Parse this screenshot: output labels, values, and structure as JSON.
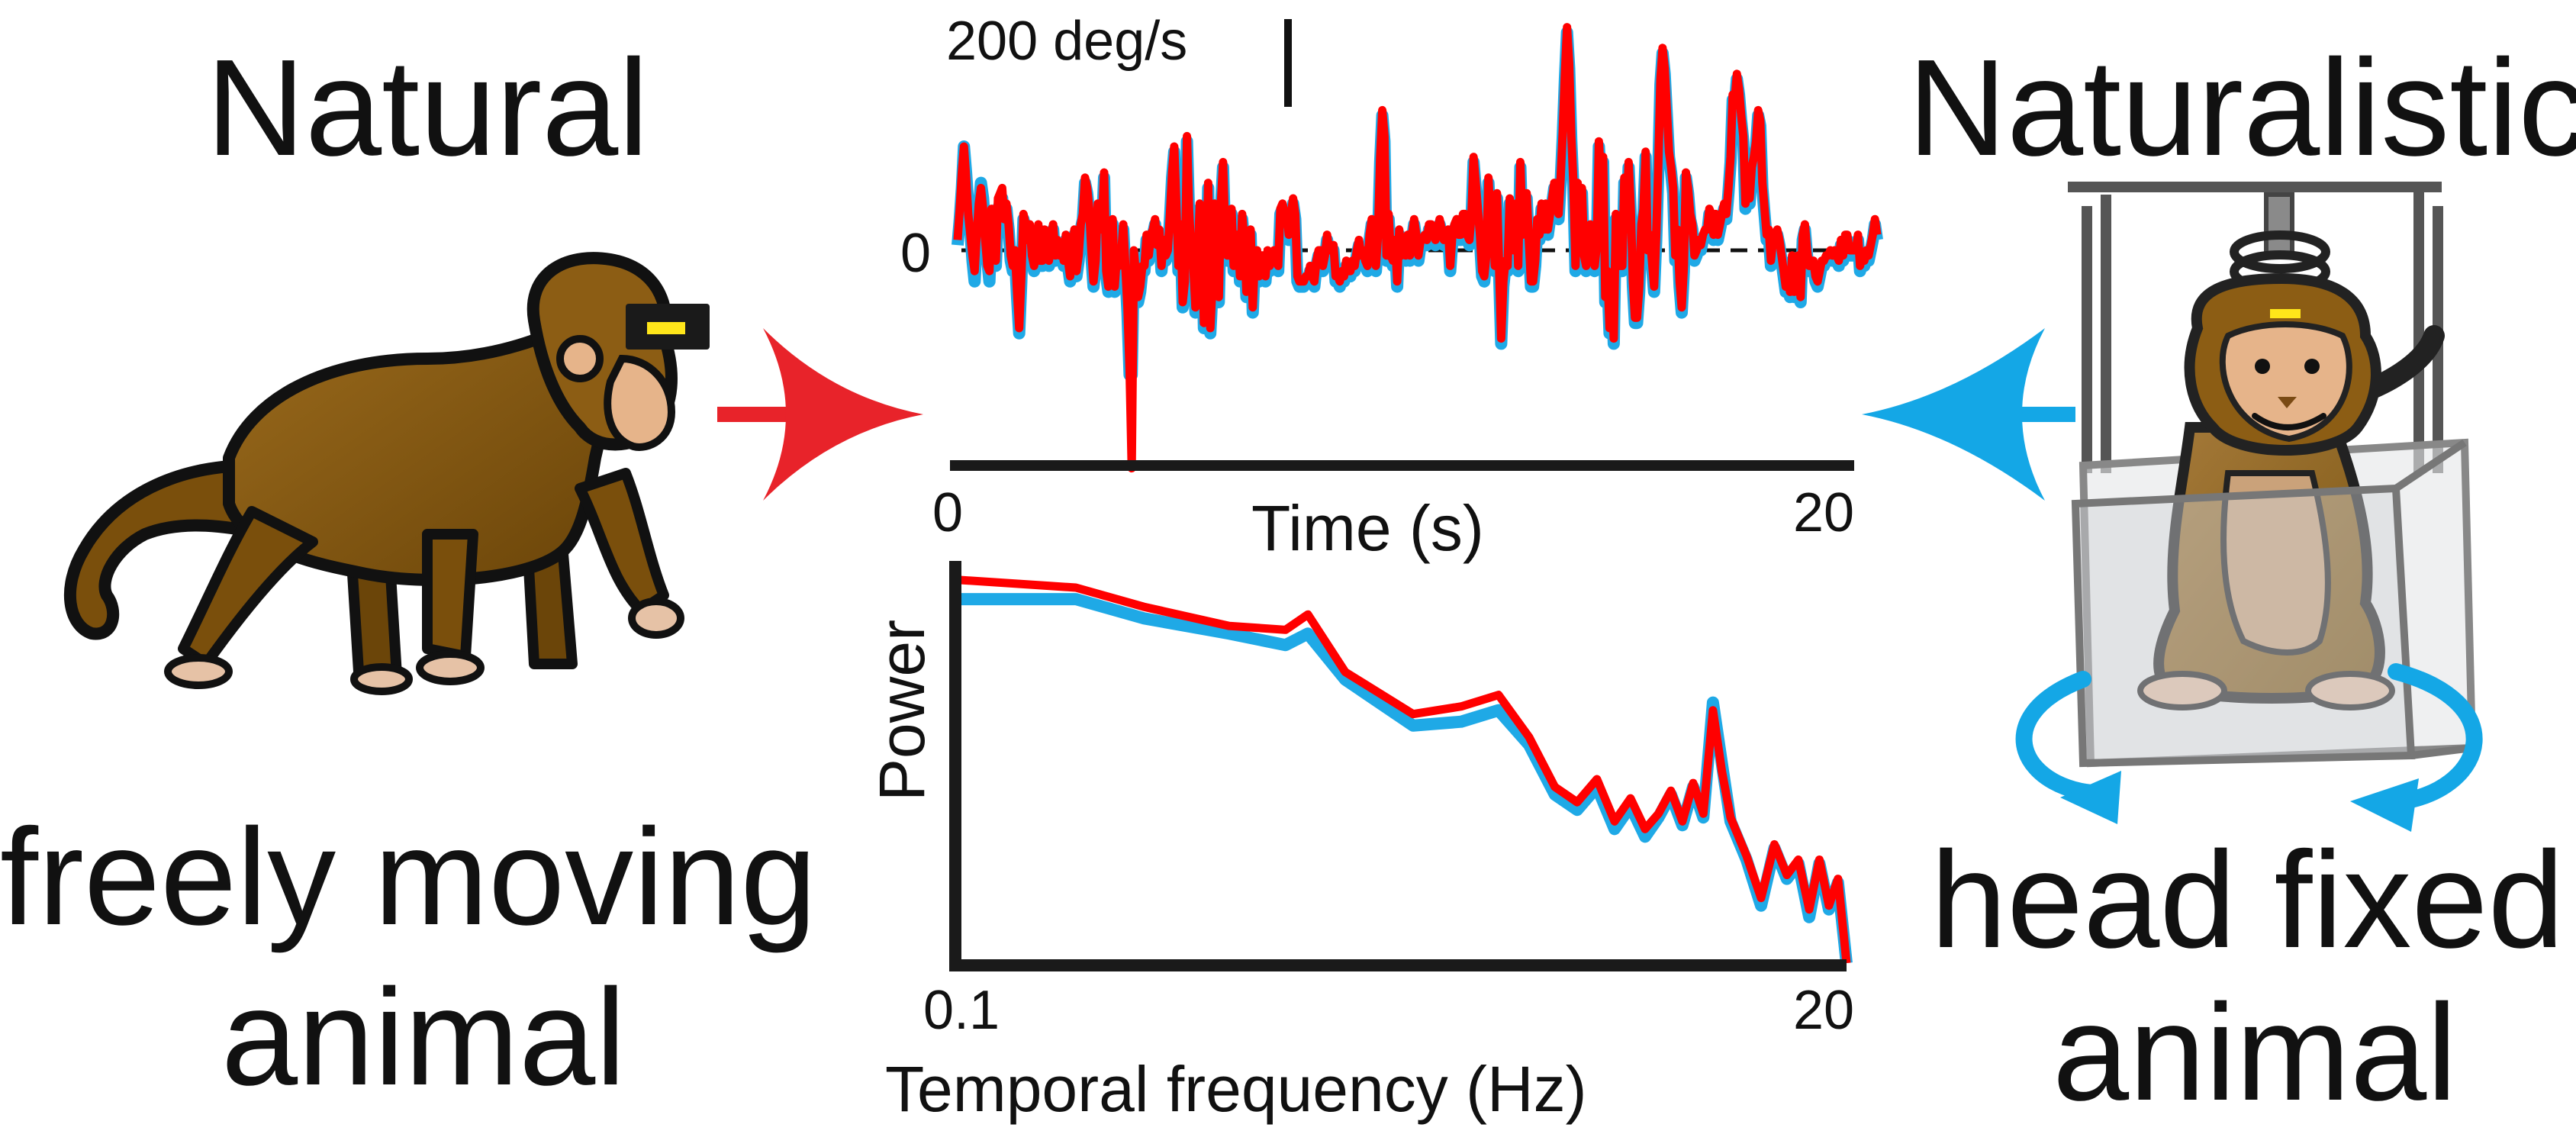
{
  "left_panel": {
    "heading": "Natural",
    "caption_line1": "freely moving",
    "caption_line2": "animal",
    "arrow_color": "#e8232a",
    "icon": "walking-monkey-with-head-sensor"
  },
  "right_panel": {
    "heading": "Naturalistic",
    "caption_line1": "head fixed",
    "caption_line2": "animal",
    "arrow_color": "#14a7e6",
    "icon": "caged-monkey-on-rotating-platform"
  },
  "colors": {
    "natural": "#ff0000",
    "naturalistic": "#1fa9e6",
    "axis": "#1a1a1a"
  },
  "chart_data": [
    {
      "type": "line",
      "scale_bar_label": "200 deg/s",
      "zero_label": "0",
      "xlabel": "Time (s)",
      "xlim": [
        0,
        20
      ],
      "x_tick_labels": [
        "0",
        "20"
      ],
      "ylim": [
        -430,
        430
      ],
      "series": [
        {
          "color": "#1fa9e6",
          "values": [
            10,
            60,
            120,
            200,
            150,
            90,
            40,
            -20,
            -60,
            20,
            80,
            130,
            100,
            40,
            -20,
            -60,
            60,
            20,
            -30,
            80,
            90,
            100,
            40,
            80,
            40,
            -20,
            -40,
            -10,
            -90,
            -160,
            -60,
            60,
            40,
            10,
            40,
            -20,
            -40,
            -20,
            40,
            -30,
            -30,
            30,
            10,
            -30,
            20,
            40,
            -20,
            10,
            -20,
            0,
            -30,
            20,
            -30,
            -60,
            -10,
            30,
            -50,
            -20,
            40,
            60,
            130,
            110,
            70,
            -10,
            -70,
            -30,
            80,
            30,
            40,
            140,
            -50,
            -80,
            -20,
            50,
            -80,
            -20,
            -40,
            -20,
            40,
            -40,
            -120,
            -240,
            -240,
            -10,
            -60,
            -100,
            -80,
            -40,
            -40,
            20,
            -20,
            20,
            30,
            50,
            0,
            30,
            -40,
            10,
            -20,
            -10,
            60,
            140,
            190,
            80,
            -40,
            40,
            -110,
            -70,
            210,
            70,
            -10,
            -40,
            -120,
            -40,
            80,
            40,
            -150,
            -70,
            120,
            -160,
            -80,
            80,
            50,
            -100,
            80,
            160,
            20,
            -20,
            -20,
            70,
            -40,
            20,
            20,
            -60,
            60,
            10,
            -90,
            -10,
            30,
            -120,
            -20,
            -10,
            -60,
            -20,
            -20,
            -60,
            -10,
            -40,
            -30,
            -10,
            -10,
            -40,
            70,
            80,
            60,
            60,
            20,
            60,
            90,
            60,
            -60,
            -70,
            -70,
            -70,
            -60,
            -60,
            -40,
            -60,
            -70,
            -30,
            -10,
            -10,
            -40,
            -20,
            20,
            -10,
            -10,
            0,
            -60,
            -60,
            -70,
            -50,
            -60,
            -30,
            -50,
            -50,
            -30,
            -40,
            -10,
            10,
            -20,
            -10,
            -30,
            -40,
            20,
            50,
            30,
            -40,
            20,
            170,
            260,
            210,
            -20,
            60,
            -20,
            -30,
            10,
            -70,
            30,
            -20,
            10,
            -20,
            20,
            -20,
            20,
            50,
            20,
            -20,
            10,
            10,
            20,
            10,
            40,
            40,
            30,
            10,
            30,
            50,
            30,
            10,
            20,
            30,
            -40,
            20,
            40,
            50,
            20,
            20,
            60,
            60,
            20,
            10,
            60,
            170,
            120,
            70,
            20,
            -50,
            -60,
            -20,
            130,
            40,
            70,
            -40,
            100,
            -40,
            -180,
            -70,
            -30,
            -40,
            90,
            40,
            -10,
            80,
            -40,
            160,
            20,
            60,
            100,
            10,
            -70,
            -70,
            -30,
            50,
            20,
            80,
            30,
            80,
            30,
            60,
            90,
            120,
            80,
            60,
            130,
            220,
            330,
            420,
            350,
            210,
            120,
            -40,
            120,
            10,
            110,
            -20,
            -40,
            -20,
            40,
            -20,
            -40,
            0,
            200,
            130,
            170,
            -100,
            -50,
            -160,
            -60,
            -180,
            60,
            -40,
            -40,
            -40,
            130,
            40,
            160,
            70,
            -70,
            -140,
            -140,
            -80,
            40,
            70,
            180,
            -10,
            20,
            -30,
            -80,
            20,
            160,
            320,
            380,
            340,
            260,
            180,
            150,
            110,
            -20,
            30,
            -70,
            -120,
            -40,
            140,
            110,
            60,
            40,
            -20,
            -10,
            10,
            0,
            20,
            30,
            30,
            70,
            60,
            20,
            60,
            20,
            40,
            60,
            80,
            60,
            110,
            170,
            290,
            280,
            330,
            300,
            250,
            210,
            80,
            110,
            90,
            150,
            170,
            200,
            260,
            240,
            120,
            70,
            20,
            30,
            -30,
            10,
            20,
            30,
            10,
            -20,
            -50,
            -80,
            -60,
            -90,
            -20,
            -90,
            -60,
            -20,
            -100,
            20,
            40,
            -10,
            -40,
            -40,
            -30,
            -60,
            -70,
            -50,
            -30,
            -30,
            -20,
            -20,
            -10,
            -20,
            -10,
            -20,
            -30,
            10,
            -20,
            20,
            20,
            -10,
            -10,
            -10,
            -10,
            20,
            -40,
            -20,
            -30,
            -10,
            -20,
            0,
            20,
            50,
            20
          ]
        },
        {
          "color": "#ff0000",
          "values": [
            20,
            80,
            150,
            200,
            140,
            70,
            30,
            -10,
            -40,
            30,
            90,
            120,
            80,
            20,
            -30,
            -40,
            80,
            30,
            -20,
            100,
            110,
            120,
            60,
            90,
            50,
            -10,
            -30,
            0,
            -80,
            -150,
            -50,
            70,
            50,
            20,
            50,
            -10,
            -30,
            -10,
            50,
            -20,
            -20,
            40,
            20,
            -20,
            30,
            50,
            -10,
            20,
            -10,
            10,
            -20,
            30,
            -20,
            -50,
            0,
            40,
            -40,
            -10,
            50,
            70,
            140,
            120,
            80,
            0,
            -60,
            -20,
            90,
            40,
            50,
            150,
            -40,
            -70,
            -10,
            60,
            -70,
            -10,
            -30,
            -10,
            50,
            -30,
            -110,
            -230,
            -420,
            0,
            -50,
            -90,
            -70,
            -30,
            -30,
            30,
            -10,
            30,
            40,
            60,
            10,
            40,
            -30,
            20,
            -10,
            0,
            70,
            150,
            200,
            90,
            -30,
            50,
            -100,
            -60,
            220,
            80,
            0,
            -30,
            -110,
            -30,
            90,
            50,
            -140,
            -60,
            130,
            -150,
            -70,
            90,
            60,
            -90,
            90,
            170,
            30,
            -10,
            -10,
            80,
            -30,
            30,
            30,
            -50,
            70,
            20,
            -80,
            0,
            40,
            -110,
            -10,
            0,
            -50,
            -10,
            -10,
            -50,
            0,
            -30,
            -20,
            0,
            0,
            -30,
            80,
            90,
            70,
            70,
            30,
            70,
            100,
            70,
            -50,
            -60,
            -60,
            -60,
            -50,
            -50,
            -30,
            -50,
            -60,
            -20,
            0,
            0,
            -30,
            -10,
            30,
            0,
            0,
            10,
            -50,
            -50,
            -60,
            -40,
            -50,
            -20,
            -40,
            -40,
            -20,
            -30,
            0,
            20,
            -10,
            0,
            -20,
            -30,
            30,
            60,
            40,
            -30,
            30,
            180,
            270,
            220,
            -10,
            70,
            -10,
            -20,
            20,
            -60,
            40,
            -10,
            20,
            -10,
            30,
            -10,
            30,
            60,
            30,
            -10,
            20,
            20,
            30,
            20,
            50,
            50,
            40,
            20,
            40,
            60,
            40,
            20,
            30,
            40,
            -30,
            30,
            50,
            60,
            30,
            30,
            70,
            70,
            30,
            20,
            70,
            180,
            130,
            80,
            30,
            -40,
            -50,
            -10,
            140,
            50,
            80,
            -30,
            110,
            -30,
            -170,
            -60,
            -20,
            -30,
            100,
            50,
            0,
            90,
            -30,
            170,
            30,
            70,
            110,
            20,
            -60,
            -60,
            -20,
            60,
            30,
            90,
            40,
            90,
            40,
            70,
            100,
            130,
            90,
            70,
            140,
            230,
            340,
            430,
            360,
            220,
            130,
            -30,
            130,
            20,
            120,
            -10,
            -30,
            -10,
            50,
            -10,
            -30,
            10,
            210,
            140,
            180,
            -90,
            -40,
            -150,
            -50,
            -170,
            70,
            -30,
            -30,
            -30,
            140,
            50,
            170,
            80,
            -60,
            -130,
            -130,
            -70,
            50,
            80,
            190,
            0,
            30,
            -20,
            -70,
            30,
            170,
            330,
            390,
            350,
            270,
            190,
            160,
            120,
            -10,
            40,
            -60,
            -110,
            -30,
            150,
            120,
            70,
            50,
            -10,
            0,
            20,
            10,
            30,
            40,
            40,
            80,
            70,
            30,
            70,
            30,
            50,
            70,
            90,
            70,
            120,
            180,
            300,
            290,
            340,
            310,
            260,
            220,
            90,
            120,
            100,
            160,
            180,
            210,
            270,
            250,
            130,
            80,
            30,
            40,
            -20,
            20,
            30,
            40,
            20,
            -10,
            -40,
            -70,
            -50,
            -80,
            -10,
            -80,
            -50,
            -10,
            -90,
            30,
            50,
            0,
            -30,
            -30,
            -20,
            -50,
            -60,
            -40,
            -20,
            -20,
            -10,
            -10,
            0,
            -10,
            0,
            -10,
            -20,
            20,
            -10,
            30,
            30,
            0,
            0,
            0,
            0,
            30,
            -30,
            -10,
            -20,
            0,
            -10,
            10,
            30,
            60,
            30
          ]
        }
      ]
    },
    {
      "type": "line",
      "xlabel": "Temporal frequency (Hz)",
      "ylabel": "Power",
      "x_scale": "log",
      "xlim": [
        0.1,
        20
      ],
      "x_tick_labels": [
        "0.1",
        "20"
      ],
      "y_ticks": "none",
      "ylim": [
        0,
        1
      ],
      "x": [
        0.1,
        0.2,
        0.3,
        0.5,
        0.7,
        0.8,
        1.0,
        1.5,
        2.0,
        2.5,
        3.0,
        3.5,
        4.0,
        4.5,
        5.0,
        5.5,
        6.0,
        6.5,
        7.0,
        7.5,
        8.0,
        8.5,
        9.0,
        9.5,
        10.0,
        11.0,
        12.0,
        13.0,
        14.0,
        15.0,
        16.0,
        17.0,
        18.0,
        19.0,
        20.0
      ],
      "series": [
        {
          "color": "#1fa9e6",
          "values": [
            0.95,
            0.95,
            0.9,
            0.86,
            0.83,
            0.86,
            0.74,
            0.62,
            0.63,
            0.66,
            0.57,
            0.44,
            0.4,
            0.46,
            0.35,
            0.41,
            0.33,
            0.38,
            0.44,
            0.36,
            0.46,
            0.38,
            0.68,
            0.52,
            0.37,
            0.27,
            0.15,
            0.3,
            0.22,
            0.26,
            0.12,
            0.26,
            0.14,
            0.21,
            0.0
          ]
        },
        {
          "color": "#ff0000",
          "values": [
            1.0,
            0.98,
            0.93,
            0.88,
            0.87,
            0.91,
            0.76,
            0.65,
            0.67,
            0.7,
            0.59,
            0.46,
            0.42,
            0.48,
            0.37,
            0.43,
            0.35,
            0.39,
            0.45,
            0.37,
            0.47,
            0.39,
            0.66,
            0.5,
            0.38,
            0.28,
            0.17,
            0.31,
            0.23,
            0.27,
            0.14,
            0.27,
            0.15,
            0.22,
            0.0
          ]
        }
      ]
    }
  ]
}
